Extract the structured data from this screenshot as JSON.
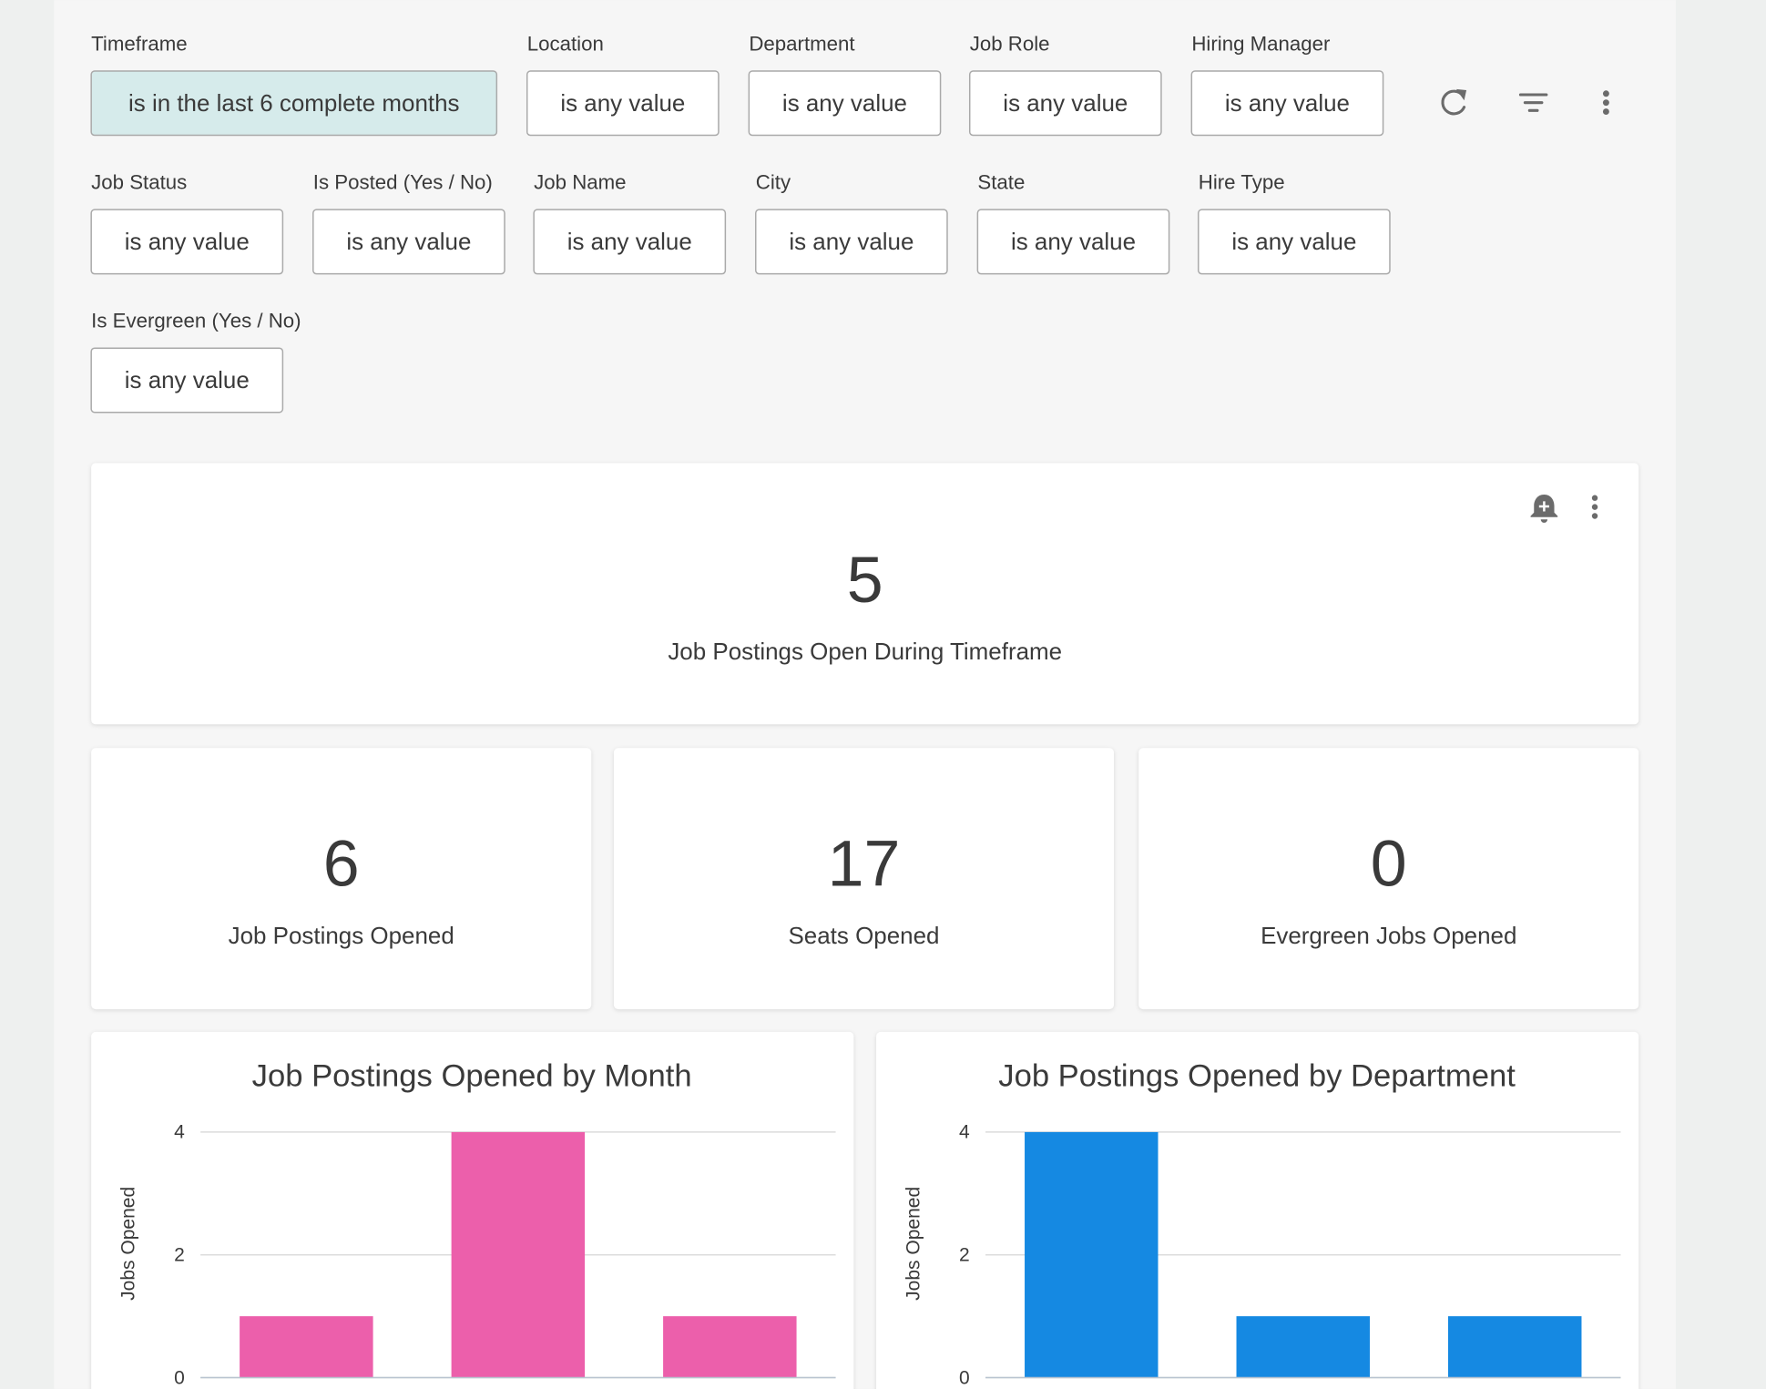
{
  "filters": [
    {
      "label": "Timeframe",
      "value": "is in the last 6 complete months"
    },
    {
      "label": "Location",
      "value": "is any value"
    },
    {
      "label": "Department",
      "value": "is any value"
    },
    {
      "label": "Job Role",
      "value": "is any value"
    },
    {
      "label": "Hiring Manager",
      "value": "is any value"
    },
    {
      "label": "Job Status",
      "value": "is any value"
    },
    {
      "label": "Is Posted (Yes / No)",
      "value": "is any value"
    },
    {
      "label": "Job Name",
      "value": "is any value"
    },
    {
      "label": "City",
      "value": "is any value"
    },
    {
      "label": "State",
      "value": "is any value"
    },
    {
      "label": "Hire Type",
      "value": "is any value"
    },
    {
      "label": "Is Evergreen (Yes / No)",
      "value": "is any value"
    }
  ],
  "headline": {
    "value": 5,
    "label": "Job Postings Open During Timeframe"
  },
  "kpis": [
    {
      "value": 6,
      "label": "Job Postings Opened"
    },
    {
      "value": 17,
      "label": "Seats Opened"
    },
    {
      "value": 0,
      "label": "Evergreen Jobs Opened"
    }
  ],
  "chart_data": [
    {
      "type": "bar",
      "title": "Job Postings Opened by Month",
      "y_label": "Jobs Opened",
      "categories": [
        null,
        null,
        null
      ],
      "values": [
        1,
        4,
        1
      ],
      "color": "#ec5fab",
      "ylim": [
        0,
        4
      ],
      "yticks": [
        0,
        2,
        4
      ],
      "grid": true
    },
    {
      "type": "bar",
      "title": "Job Postings Opened by Department",
      "y_label": "Jobs Opened",
      "categories": [
        null,
        null,
        null
      ],
      "values": [
        4,
        1,
        1
      ],
      "color": "#1589e2",
      "ylim": [
        0,
        4
      ],
      "yticks": [
        0,
        2,
        4
      ],
      "grid": true
    }
  ]
}
